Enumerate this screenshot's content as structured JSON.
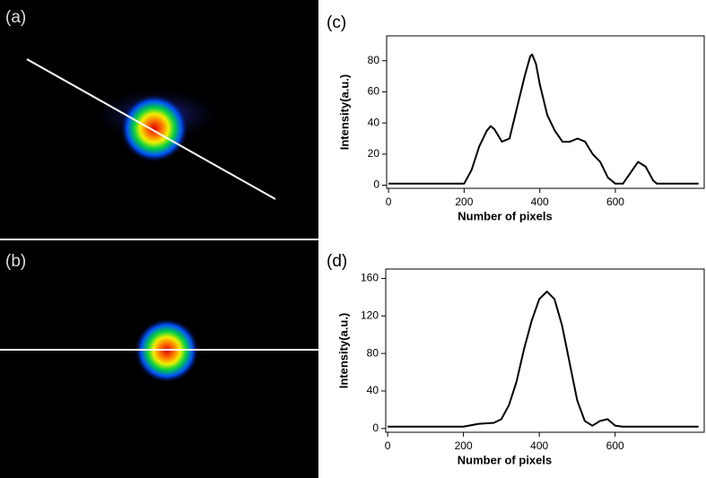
{
  "panel_labels": [
    "(a)",
    "(b)",
    "(c)",
    "(d)"
  ],
  "chart_data": [
    {
      "type": "line",
      "x_label": "Number of pixels",
      "y_label": "Intensity(a.u.)",
      "xlim": [
        -5,
        835
      ],
      "ylim": [
        -2,
        96
      ],
      "xticks": [
        0,
        200,
        400,
        600
      ],
      "yticks": [
        0,
        20,
        40,
        60,
        80
      ],
      "series": [
        {
          "color": "#000000",
          "x": [
            0,
            190,
            200,
            220,
            240,
            260,
            270,
            280,
            300,
            320,
            340,
            360,
            375,
            380,
            390,
            400,
            420,
            440,
            460,
            480,
            500,
            520,
            540,
            560,
            580,
            600,
            620,
            640,
            660,
            680,
            700,
            710,
            800,
            820
          ],
          "values": [
            1,
            1,
            1,
            10,
            25,
            35,
            38,
            36,
            28,
            30,
            50,
            70,
            83,
            84,
            78,
            65,
            45,
            35,
            28,
            28,
            30,
            28,
            20,
            15,
            5,
            1,
            1,
            8,
            15,
            12,
            3,
            1,
            1,
            1
          ]
        }
      ]
    },
    {
      "type": "line",
      "x_label": "Number of pixels",
      "y_label": "Intensity(a.u.)",
      "xlim": [
        -5,
        835
      ],
      "ylim": [
        -4,
        170
      ],
      "xticks": [
        0,
        200,
        400,
        600
      ],
      "yticks": [
        0,
        40,
        80,
        120,
        160
      ],
      "series": [
        {
          "color": "#000000",
          "x": [
            0,
            200,
            240,
            280,
            300,
            320,
            340,
            360,
            380,
            400,
            420,
            440,
            460,
            480,
            500,
            520,
            540,
            560,
            580,
            600,
            620,
            800,
            820
          ],
          "values": [
            2,
            2,
            5,
            6,
            10,
            25,
            50,
            85,
            115,
            138,
            146,
            138,
            110,
            70,
            30,
            8,
            3,
            8,
            10,
            3,
            2,
            2,
            2
          ]
        }
      ]
    }
  ]
}
